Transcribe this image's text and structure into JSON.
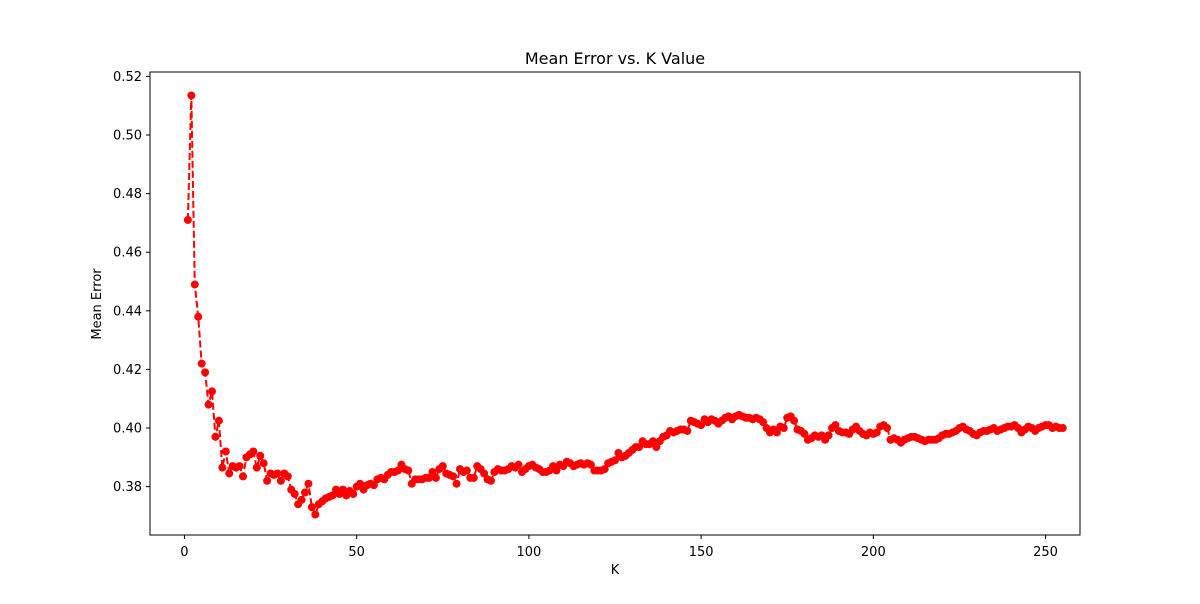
{
  "chart_data": {
    "type": "line",
    "title": "Mean Error vs. K Value",
    "xlabel": "K",
    "ylabel": "Mean Error",
    "xlim": [
      -10,
      260
    ],
    "ylim": [
      0.3635,
      0.5215
    ],
    "xticks": [
      0,
      50,
      100,
      150,
      200,
      250
    ],
    "yticks": [
      0.38,
      0.4,
      0.42,
      0.44,
      0.46,
      0.48,
      0.5,
      0.52
    ],
    "grid": false,
    "legend": false,
    "line_color": "#ff0000",
    "line_style": "dashed",
    "marker": "circle",
    "series": [
      {
        "x_start": 1,
        "x_step": 1,
        "values": [
          0.471,
          0.5135,
          0.449,
          0.438,
          0.422,
          0.419,
          0.408,
          0.4125,
          0.397,
          0.4025,
          0.3865,
          0.392,
          0.3845,
          0.387,
          0.3865,
          0.387,
          0.3835,
          0.39,
          0.391,
          0.392,
          0.3865,
          0.3905,
          0.388,
          0.382,
          0.3845,
          0.384,
          0.3845,
          0.382,
          0.3845,
          0.3835,
          0.379,
          0.3775,
          0.374,
          0.3755,
          0.378,
          0.381,
          0.373,
          0.3705,
          0.374,
          0.375,
          0.376,
          0.3765,
          0.377,
          0.379,
          0.3775,
          0.379,
          0.377,
          0.3785,
          0.3775,
          0.38,
          0.381,
          0.379,
          0.3805,
          0.381,
          0.3805,
          0.3825,
          0.383,
          0.3825,
          0.384,
          0.385,
          0.385,
          0.3855,
          0.3875,
          0.386,
          0.3855,
          0.381,
          0.3825,
          0.3825,
          0.3825,
          0.383,
          0.383,
          0.385,
          0.383,
          0.386,
          0.387,
          0.3845,
          0.384,
          0.3835,
          0.381,
          0.386,
          0.385,
          0.3855,
          0.383,
          0.383,
          0.387,
          0.386,
          0.3845,
          0.3825,
          0.382,
          0.385,
          0.386,
          0.3855,
          0.3855,
          0.386,
          0.387,
          0.3865,
          0.3875,
          0.385,
          0.386,
          0.387,
          0.3875,
          0.3865,
          0.386,
          0.385,
          0.385,
          0.3855,
          0.387,
          0.3855,
          0.3875,
          0.387,
          0.3885,
          0.388,
          0.387,
          0.3875,
          0.388,
          0.3875,
          0.388,
          0.3875,
          0.3855,
          0.3855,
          0.3855,
          0.386,
          0.388,
          0.3885,
          0.389,
          0.3915,
          0.39,
          0.3905,
          0.3915,
          0.3925,
          0.3935,
          0.3935,
          0.3955,
          0.3945,
          0.3945,
          0.3955,
          0.3935,
          0.3955,
          0.397,
          0.3975,
          0.399,
          0.3985,
          0.399,
          0.3995,
          0.3995,
          0.399,
          0.4025,
          0.402,
          0.4015,
          0.401,
          0.403,
          0.402,
          0.403,
          0.4025,
          0.4015,
          0.4025,
          0.4035,
          0.404,
          0.403,
          0.404,
          0.4045,
          0.404,
          0.4035,
          0.4035,
          0.403,
          0.4035,
          0.403,
          0.402,
          0.4,
          0.3985,
          0.3995,
          0.3985,
          0.4005,
          0.4,
          0.4035,
          0.404,
          0.4025,
          0.3995,
          0.399,
          0.398,
          0.396,
          0.3965,
          0.3975,
          0.397,
          0.3975,
          0.396,
          0.3975,
          0.4,
          0.401,
          0.399,
          0.3985,
          0.3985,
          0.398,
          0.3995,
          0.4005,
          0.399,
          0.398,
          0.3975,
          0.3985,
          0.398,
          0.3985,
          0.4005,
          0.401,
          0.4,
          0.396,
          0.3965,
          0.396,
          0.395,
          0.396,
          0.3965,
          0.397,
          0.397,
          0.3965,
          0.396,
          0.3955,
          0.396,
          0.396,
          0.396,
          0.3965,
          0.3975,
          0.398,
          0.398,
          0.3985,
          0.399,
          0.4,
          0.4005,
          0.3995,
          0.399,
          0.398,
          0.3975,
          0.3985,
          0.399,
          0.399,
          0.3995,
          0.4,
          0.399,
          0.3995,
          0.4,
          0.4005,
          0.4005,
          0.401,
          0.4,
          0.3985,
          0.3995,
          0.4005,
          0.4,
          0.399,
          0.4,
          0.4005,
          0.401,
          0.401,
          0.4,
          0.4005,
          0.4,
          0.4
        ]
      }
    ]
  }
}
